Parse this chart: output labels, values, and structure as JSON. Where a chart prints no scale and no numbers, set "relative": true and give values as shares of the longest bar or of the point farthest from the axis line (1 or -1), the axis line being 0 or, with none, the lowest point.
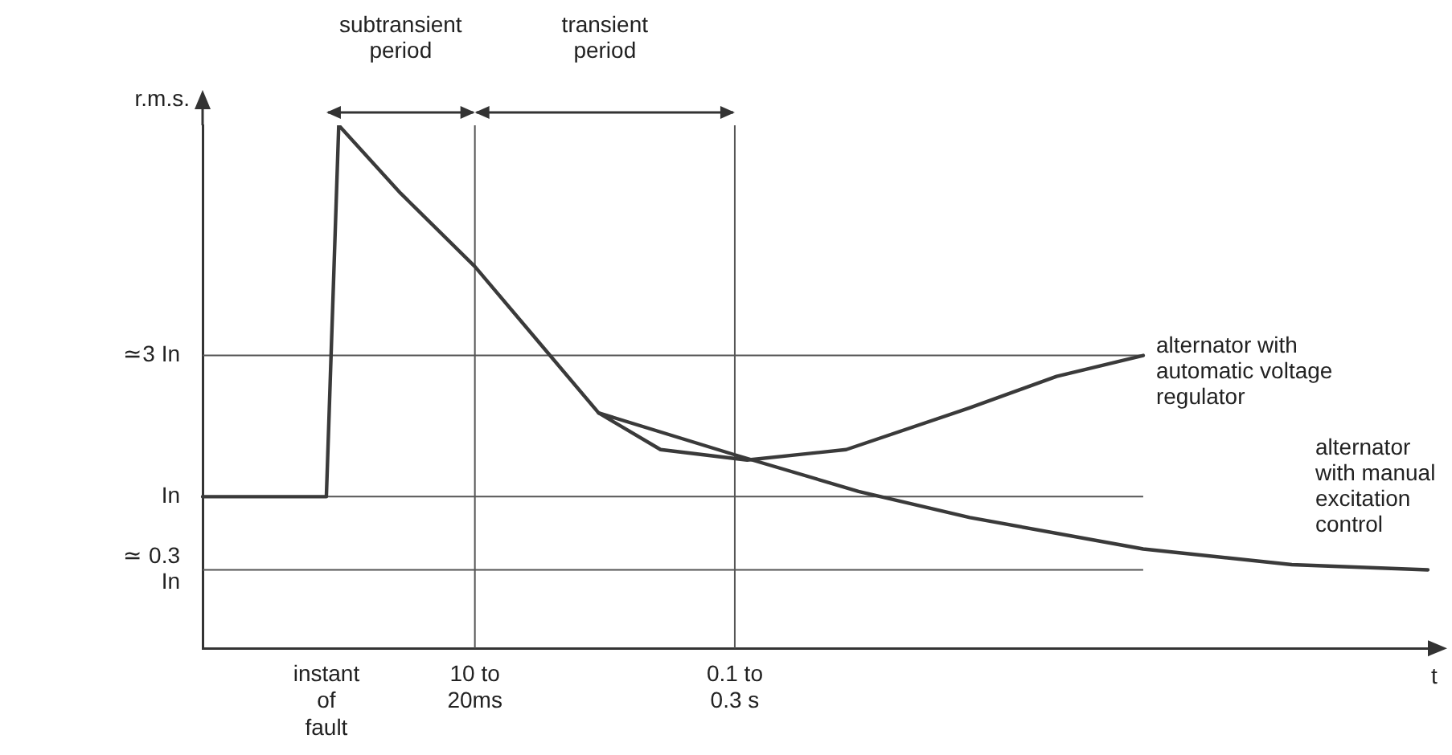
{
  "chart_data": {
    "type": "line",
    "relative": true,
    "ylabel": "r.m.s.",
    "xlabel": "t",
    "legend": false,
    "grid": false,
    "marker": "none",
    "line_style": "solid",
    "categories": [
      null,
      null,
      null,
      null,
      null,
      null,
      null,
      null,
      null,
      null,
      "instant of fault",
      null,
      null,
      null,
      null,
      null,
      null,
      null,
      null,
      null,
      null,
      null,
      "10 to 20ms",
      null,
      null,
      null,
      null,
      null,
      null,
      null,
      null,
      null,
      null,
      null,
      null,
      null,
      null,
      null,
      null,
      null,
      null,
      null,
      null,
      "0.1 to 0.3 s",
      null,
      null,
      null,
      null,
      null,
      null,
      null,
      null,
      null,
      null,
      null,
      null,
      null,
      null,
      null,
      null,
      null,
      null,
      null,
      null,
      null,
      null,
      null,
      null,
      null,
      null,
      null,
      null,
      null,
      null,
      null,
      null,
      null,
      null,
      null,
      null,
      null,
      null,
      null,
      null,
      null,
      null,
      null,
      null,
      null,
      null,
      null,
      null,
      null,
      null,
      null,
      null,
      null,
      null,
      null,
      null
    ],
    "series": [
      {
        "name": "alternator with manual excitation control",
        "color": "#3a3a3a",
        "values": [
          0.29,
          null,
          null,
          null,
          null,
          null,
          null,
          null,
          null,
          null,
          0.29,
          1.0,
          null,
          null,
          null,
          null,
          0.87,
          null,
          null,
          null,
          null,
          null,
          0.73,
          null,
          null,
          null,
          null,
          0.59,
          null,
          null,
          null,
          null,
          0.45,
          null,
          null,
          null,
          null,
          null,
          null,
          null,
          null,
          null,
          null,
          0.37,
          null,
          null,
          null,
          null,
          null,
          null,
          null,
          null,
          null,
          0.3,
          null,
          null,
          null,
          null,
          null,
          null,
          null,
          null,
          0.25,
          null,
          null,
          null,
          null,
          null,
          null,
          null,
          null,
          null,
          null,
          null,
          null,
          null,
          0.19,
          null,
          null,
          null,
          null,
          null,
          null,
          null,
          null,
          null,
          null,
          null,
          0.16,
          null,
          null,
          null,
          null,
          null,
          null,
          null,
          null,
          null,
          null,
          0.15
        ]
      },
      {
        "name": "alternator with automatic voltage regulator",
        "color": "#3a3a3a",
        "values": [
          null,
          null,
          null,
          null,
          null,
          null,
          null,
          null,
          null,
          null,
          null,
          null,
          null,
          null,
          null,
          null,
          null,
          null,
          null,
          null,
          null,
          null,
          null,
          null,
          null,
          null,
          null,
          null,
          null,
          null,
          null,
          null,
          0.45,
          null,
          null,
          null,
          null,
          0.38,
          null,
          null,
          null,
          null,
          null,
          null,
          0.36,
          null,
          null,
          null,
          null,
          null,
          null,
          null,
          0.38,
          null,
          null,
          null,
          null,
          null,
          null,
          null,
          null,
          null,
          0.46,
          null,
          null,
          null,
          null,
          null,
          null,
          0.52,
          null,
          null,
          null,
          null,
          null,
          null,
          0.56,
          null,
          null,
          null,
          null,
          null,
          null,
          null,
          null,
          null,
          null,
          null,
          null,
          null,
          null,
          null,
          null,
          null,
          null,
          null,
          null,
          null,
          null,
          null
        ]
      }
    ],
    "ref_lines": [
      {
        "axis": "y",
        "value": 0.56,
        "label": "≃3 In",
        "color": "#555555"
      },
      {
        "axis": "y",
        "value": 0.29,
        "label": "In",
        "color": "#555555"
      },
      {
        "axis": "y",
        "value": 0.15,
        "label": "≃ 0.3 In",
        "color": "#555555"
      },
      {
        "axis": "x",
        "value": "10 to 20ms",
        "label": null,
        "color": "#555555"
      },
      {
        "axis": "x",
        "value": "0.1 to 0.3 s",
        "label": null,
        "color": "#555555"
      }
    ],
    "annotations": [
      "subtransient period",
      "transient period"
    ]
  }
}
